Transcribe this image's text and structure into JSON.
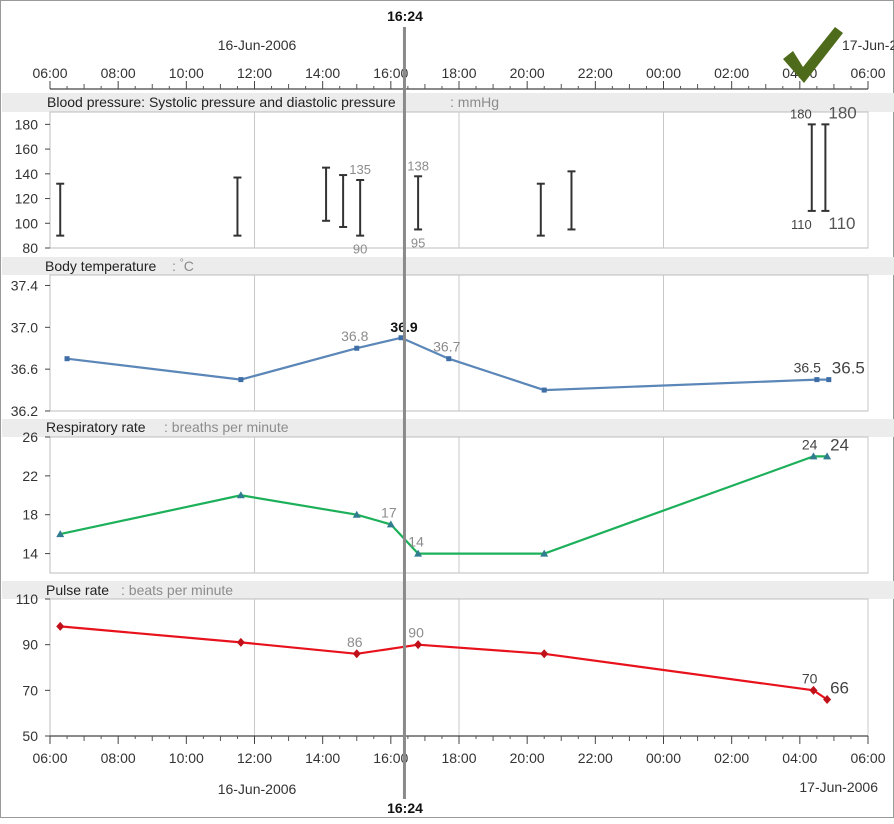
{
  "cursor": {
    "time_label": "16:24",
    "time_hours": 16.4
  },
  "dates": {
    "start": "16-Jun-2006",
    "end": "17-Jun-2006"
  },
  "time_axis": {
    "range_hours": [
      6,
      30
    ],
    "ticks": [
      "06:00",
      "08:00",
      "10:00",
      "12:00",
      "14:00",
      "16:00",
      "18:00",
      "20:00",
      "22:00",
      "00:00",
      "02:00",
      "04:00",
      "06:00"
    ]
  },
  "status": {
    "ok_icon": "checkmark-icon",
    "color": "#4d6b1a"
  },
  "chart_data": [
    {
      "id": "bp",
      "type": "range_bar",
      "title": "Blood pressure: Systolic pressure and diastolic pressure",
      "unit": "mmHg",
      "ylim": [
        80,
        190
      ],
      "yticks": [
        "80",
        "100",
        "120",
        "140",
        "160",
        "180"
      ],
      "color": "#333333",
      "points": [
        {
          "t": 6.3,
          "systolic": 132,
          "diastolic": 90
        },
        {
          "t": 11.5,
          "systolic": 137,
          "diastolic": 90
        },
        {
          "t": 14.1,
          "systolic": 145,
          "diastolic": 102
        },
        {
          "t": 14.6,
          "systolic": 139,
          "diastolic": 97
        },
        {
          "t": 15.1,
          "systolic": 135,
          "diastolic": 90,
          "label_hi": "135",
          "label_lo": "90"
        },
        {
          "t": 16.8,
          "systolic": 138,
          "diastolic": 95,
          "label_hi": "138",
          "label_lo": "95"
        },
        {
          "t": 20.4,
          "systolic": 132,
          "diastolic": 90
        },
        {
          "t": 21.3,
          "systolic": 142,
          "diastolic": 95
        },
        {
          "t": 28.35,
          "systolic": 180,
          "diastolic": 110,
          "label_hi": "180",
          "label_lo": "110"
        },
        {
          "t": 28.75,
          "systolic": 180,
          "diastolic": 110,
          "label_hi": "180",
          "label_lo": "110",
          "large": true
        }
      ]
    },
    {
      "id": "temp",
      "type": "line",
      "title": "Body temperature",
      "unit": "°C",
      "ylim": [
        36.2,
        37.5
      ],
      "yticks": [
        "36.2",
        "36.6",
        "37.0",
        "37.4"
      ],
      "color": "#5b86b8",
      "marker": "square",
      "points": [
        {
          "t": 6.5,
          "v": 36.7
        },
        {
          "t": 11.6,
          "v": 36.5
        },
        {
          "t": 15.0,
          "v": 36.8,
          "label": "36.8"
        },
        {
          "t": 16.3,
          "v": 36.9,
          "label": "36.9",
          "bold": true
        },
        {
          "t": 17.7,
          "v": 36.7,
          "label": "36.7"
        },
        {
          "t": 20.5,
          "v": 36.4
        },
        {
          "t": 28.5,
          "v": 36.5,
          "label": "36.5"
        },
        {
          "t": 28.85,
          "v": 36.5,
          "label": "36.5",
          "large": true
        }
      ]
    },
    {
      "id": "resp",
      "type": "line",
      "title": "Respiratory rate",
      "unit": "breaths per minute",
      "ylim": [
        12,
        26
      ],
      "yticks": [
        "14",
        "18",
        "22",
        "26"
      ],
      "color": "#1db05a",
      "marker": "triangle",
      "points": [
        {
          "t": 6.3,
          "v": 16
        },
        {
          "t": 11.6,
          "v": 20
        },
        {
          "t": 15.0,
          "v": 18
        },
        {
          "t": 16.0,
          "v": 17,
          "label": "17"
        },
        {
          "t": 16.8,
          "v": 14,
          "label": "14"
        },
        {
          "t": 20.5,
          "v": 14
        },
        {
          "t": 28.4,
          "v": 24,
          "label": "24"
        },
        {
          "t": 28.8,
          "v": 24,
          "label": "24",
          "large": true
        }
      ]
    },
    {
      "id": "pulse",
      "type": "line",
      "title": "Pulse rate",
      "unit": "beats per minute",
      "ylim": [
        50,
        110
      ],
      "yticks": [
        "50",
        "70",
        "90",
        "110"
      ],
      "color": "#e8121c",
      "marker": "diamond",
      "points": [
        {
          "t": 6.3,
          "v": 98
        },
        {
          "t": 11.6,
          "v": 91
        },
        {
          "t": 15.0,
          "v": 86,
          "label": "86"
        },
        {
          "t": 16.8,
          "v": 90,
          "label": "90"
        },
        {
          "t": 20.5,
          "v": 86
        },
        {
          "t": 28.4,
          "v": 70,
          "label": "70"
        },
        {
          "t": 28.8,
          "v": 66,
          "label": "66",
          "large": true
        }
      ]
    }
  ]
}
